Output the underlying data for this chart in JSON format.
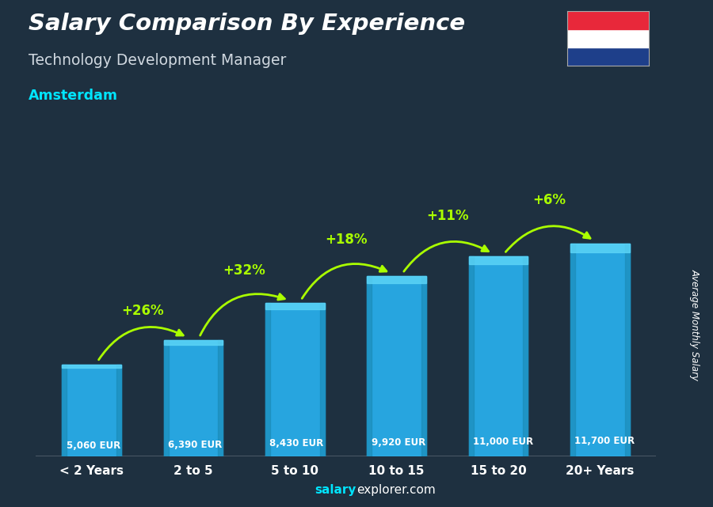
{
  "title": "Salary Comparison By Experience",
  "subtitle": "Technology Development Manager",
  "city": "Amsterdam",
  "categories": [
    "< 2 Years",
    "2 to 5",
    "5 to 10",
    "10 to 15",
    "15 to 20",
    "20+ Years"
  ],
  "values": [
    5060,
    6390,
    8430,
    9920,
    11000,
    11700
  ],
  "value_labels": [
    "5,060 EUR",
    "6,390 EUR",
    "8,430 EUR",
    "9,920 EUR",
    "11,000 EUR",
    "11,700 EUR"
  ],
  "pct_labels": [
    "+26%",
    "+32%",
    "+18%",
    "+11%",
    "+6%"
  ],
  "bar_color": "#29b6f6",
  "bar_highlight": "#5dd6f8",
  "bg_color": "#1e3040",
  "title_color": "#ffffff",
  "subtitle_color": "#d0d8e0",
  "city_color": "#00e5ff",
  "value_color": "#ffffff",
  "pct_color": "#aaff00",
  "arrow_color": "#aaff00",
  "ylabel": "Average Monthly Salary",
  "footer_salary": "salary",
  "footer_rest": "explorer.com",
  "ylim_max": 14500,
  "flag_red": "#E8283A",
  "flag_white": "#ffffff",
  "flag_blue": "#1E3F8A"
}
